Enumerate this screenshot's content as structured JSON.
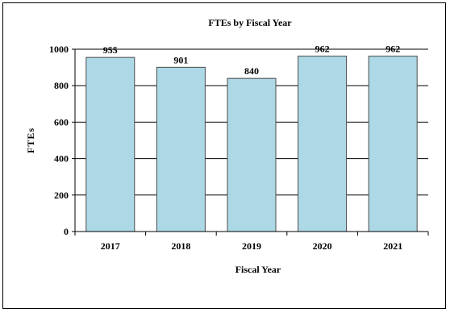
{
  "chart_data": {
    "type": "bar",
    "title": "FTEs by Fiscal Year",
    "xlabel": "Fiscal Year",
    "ylabel": "FTEs",
    "categories": [
      "2017",
      "2018",
      "2019",
      "2020",
      "2021"
    ],
    "values": [
      955,
      901,
      840,
      962,
      962
    ],
    "data_labels": [
      "955",
      "901",
      "840",
      "962",
      "962"
    ],
    "ylim": [
      0,
      1000
    ],
    "yticks": [
      0,
      200,
      400,
      600,
      800,
      1000
    ],
    "ytick_labels": [
      "0",
      "200",
      "400",
      "600",
      "800",
      "1000"
    ],
    "grid": true,
    "legend": "none",
    "bar_color": "#ADD8E6",
    "edge_color": "#4a4a4a"
  }
}
